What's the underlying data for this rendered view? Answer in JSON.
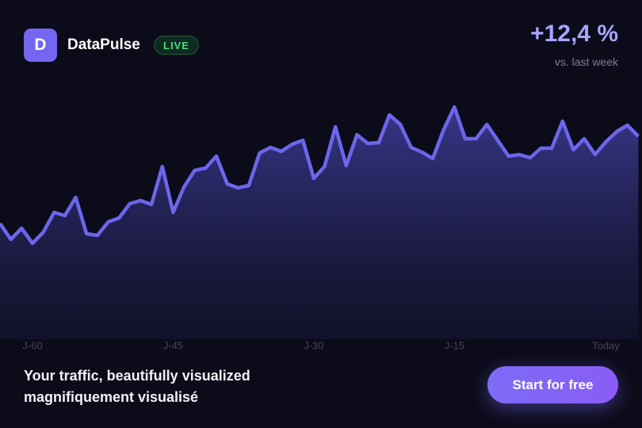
{
  "header": {
    "logo": "D",
    "brand": "DataPulse",
    "badge": "LIVE",
    "change": "+12,4 %",
    "change_note": "vs. last week"
  },
  "footer": {
    "headline": [
      "Your traffic, beautifully visualized",
      "magnifiquement visualisé"
    ],
    "button": "Start for free"
  },
  "chart_data": {
    "type": "area",
    "categories": [
      null,
      null,
      null,
      "J-60",
      null,
      null,
      null,
      null,
      null,
      null,
      null,
      null,
      null,
      null,
      null,
      null,
      "J-45",
      null,
      null,
      null,
      null,
      null,
      null,
      null,
      null,
      null,
      null,
      null,
      null,
      "J-30",
      null,
      null,
      null,
      null,
      null,
      null,
      null,
      null,
      null,
      null,
      null,
      null,
      "J-15",
      null,
      null,
      null,
      null,
      null,
      null,
      null,
      null,
      null,
      null,
      null,
      null,
      null,
      "Today",
      null,
      null,
      null
    ],
    "values": [
      146,
      126,
      140,
      121,
      135,
      160,
      156,
      179,
      133,
      131,
      148,
      153,
      171,
      175,
      170,
      218,
      160,
      192,
      213,
      216,
      231,
      196,
      191,
      194,
      235,
      242,
      237,
      246,
      251,
      203,
      218,
      268,
      219,
      258,
      247,
      248,
      283,
      271,
      242,
      236,
      228,
      264,
      293,
      253,
      253,
      271,
      251,
      231,
      233,
      229,
      241,
      241,
      275,
      239,
      253,
      233,
      249,
      262,
      270,
      256
    ],
    "color": "#6b66ea",
    "ylim": [
      0,
      300
    ]
  }
}
